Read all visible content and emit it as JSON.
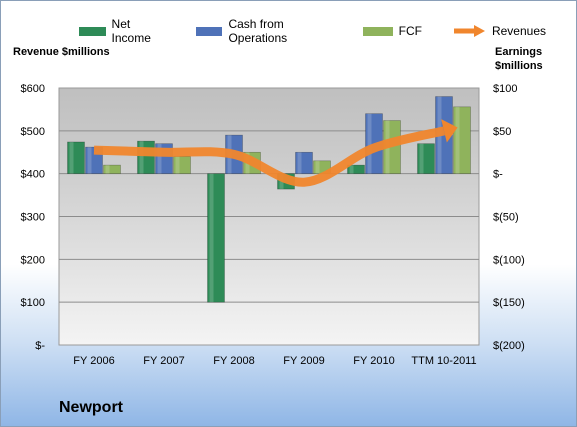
{
  "chart_data": {
    "type": "bar",
    "categories": [
      "FY 2006",
      "FY 2007",
      "FY 2008",
      "FY 2009",
      "FY 2010",
      "TTM 10-2011"
    ],
    "series": [
      {
        "name": "Net Income",
        "axis": "right",
        "color": "#2e8b57",
        "values": [
          37,
          38,
          -150,
          -18,
          10,
          35
        ]
      },
      {
        "name": "Cash from Operations",
        "axis": "right",
        "color": "#4f72b8",
        "values": [
          31,
          35,
          45,
          25,
          70,
          90
        ]
      },
      {
        "name": "FCF",
        "axis": "right",
        "color": "#8fb35c",
        "values": [
          10,
          20,
          25,
          15,
          62,
          78
        ]
      }
    ],
    "line_series": {
      "name": "Revenues",
      "axis": "left",
      "color": "#f0862d",
      "values": [
        455,
        450,
        445,
        380,
        460,
        500
      ]
    },
    "ylabel_left": "Revenue $millions",
    "ylabel_right": "Earnings $millions",
    "ylim_left": [
      0,
      600
    ],
    "ylim_right": [
      -200,
      100
    ],
    "left_ticks": [
      "$-",
      "$100",
      "$200",
      "$300",
      "$400",
      "$500",
      "$600"
    ],
    "right_ticks": [
      "$(200)",
      "$(150)",
      "$(100)",
      "$(50)",
      "$-",
      "$50",
      "$100"
    ],
    "grid": true,
    "legend_position": "top",
    "company": "Newport"
  }
}
